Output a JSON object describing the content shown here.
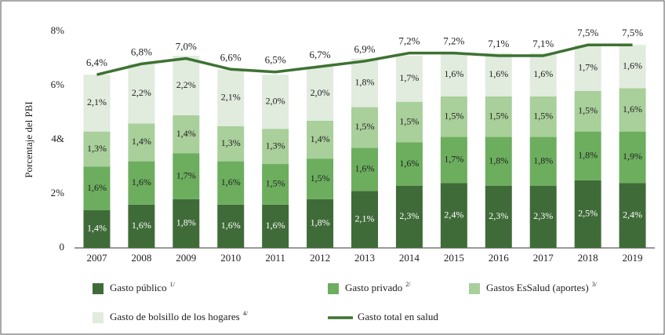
{
  "chart_data": {
    "type": "stacked_bar_line",
    "y_label": "Porcentaje del PBI",
    "categories": [
      "2007",
      "2008",
      "2009",
      "2010",
      "2011",
      "2012",
      "2013",
      "2014",
      "2015",
      "2016",
      "2017",
      "2018",
      "2019"
    ],
    "ylim": [
      0,
      8
    ],
    "yticks": [
      0,
      {
        "value": 2,
        "label": "2%"
      },
      {
        "value": 4,
        "label": "4&"
      },
      {
        "value": 6,
        "label": "6%"
      },
      {
        "value": 8,
        "label": "8%"
      }
    ],
    "series": [
      {
        "name": "Gasto público",
        "superscript": "1/",
        "color": "#3f6b38",
        "label_color": "#ffffff",
        "values": [
          1.4,
          1.6,
          1.8,
          1.6,
          1.6,
          1.8,
          2.1,
          2.3,
          2.4,
          2.3,
          2.3,
          2.5,
          2.4
        ],
        "value_labels": [
          "1,4%",
          "1,6%",
          "1,8%",
          "1,6%",
          "1,6%",
          "1,8%",
          "2,1%",
          "2,3%",
          "2,4%",
          "2,3%",
          "2,3%",
          "2,5%",
          "2,4%"
        ]
      },
      {
        "name": "Gasto privado",
        "superscript": "2/",
        "color": "#6cae5e",
        "label_color": "#222222",
        "values": [
          1.6,
          1.6,
          1.7,
          1.6,
          1.5,
          1.5,
          1.6,
          1.6,
          1.7,
          1.8,
          1.8,
          1.8,
          1.9
        ],
        "value_labels": [
          "1,6%",
          "1,6%",
          "1,7%",
          "1,6%",
          "1,5%",
          "1,5%",
          "1,6%",
          "1,6%",
          "1,7%",
          "1,8%",
          "1,8%",
          "1,8%",
          "1,9%"
        ]
      },
      {
        "name": "Gastos EsSalud (aportes)",
        "superscript": "3/",
        "color": "#a9cf9a",
        "label_color": "#222222",
        "values": [
          1.3,
          1.4,
          1.4,
          1.3,
          1.3,
          1.4,
          1.5,
          1.5,
          1.5,
          1.5,
          1.5,
          1.5,
          1.6
        ],
        "value_labels": [
          "1,3%",
          "1,4%",
          "1,4%",
          "1,3%",
          "1,3%",
          "1,4%",
          "1,5%",
          "1,5%",
          "1,5%",
          "1,5%",
          "1,5%",
          "1,5%",
          "1,6%"
        ]
      },
      {
        "name": "Gasto de bolsillo de los hogares",
        "superscript": "4/",
        "color": "#e1ebde",
        "label_color": "#222222",
        "values": [
          2.1,
          2.2,
          2.2,
          2.1,
          2.0,
          2.0,
          1.8,
          1.7,
          1.6,
          1.6,
          1.6,
          1.7,
          1.6
        ],
        "value_labels": [
          "2,1%",
          "2,2%",
          "2,2%",
          "2,1%",
          "2,0%",
          "2,0%",
          "1,8%",
          "1,7%",
          "1,6%",
          "1,6%",
          "1,6%",
          "1,7%",
          "1,6%"
        ]
      }
    ],
    "line": {
      "name": "Gasto total en salud",
      "color": "#3d7232",
      "values": [
        6.4,
        6.8,
        7.0,
        6.6,
        6.5,
        6.7,
        6.9,
        7.2,
        7.2,
        7.1,
        7.1,
        7.5,
        7.5
      ],
      "value_labels": [
        "6,4%",
        "6,8%",
        "7,0%",
        "6,6%",
        "6,5%",
        "6,7%",
        "6,9%",
        "7,2%",
        "7,2%",
        "7,1%",
        "7,1%",
        "7,5%",
        "7,5%"
      ]
    }
  }
}
